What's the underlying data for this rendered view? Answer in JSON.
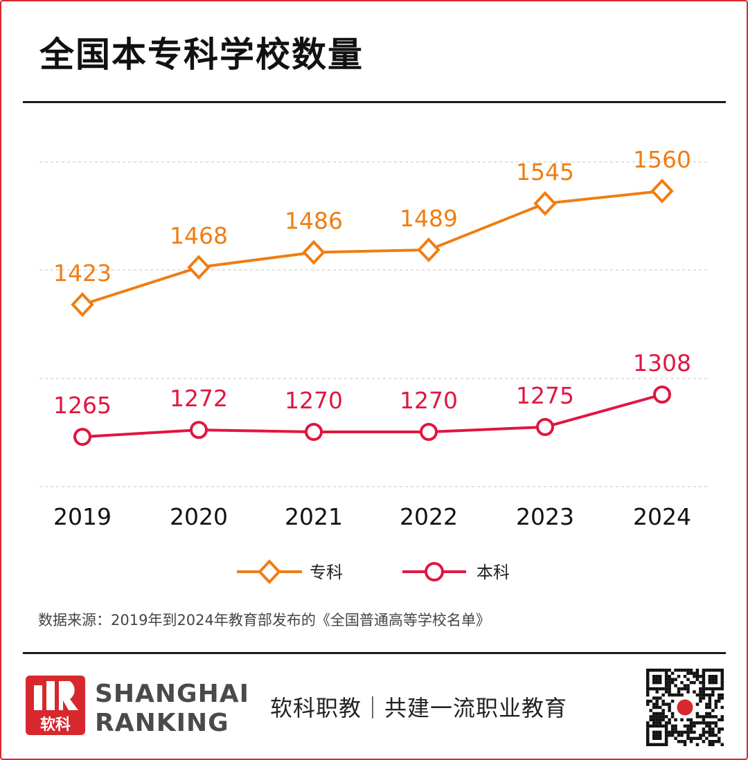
{
  "title": "全国本专科学校数量",
  "source_note": "数据来源：2019年到2024年教育部发布的《全国普通高等学校名单》",
  "footer": {
    "logo_text_cn": "软科",
    "brand_line1": "SHANGHAI",
    "brand_line2": "RANKING",
    "slogan": "软科职教｜共建一流职业教育"
  },
  "colors": {
    "zhuanke": "#f07d12",
    "benke": "#e0163f",
    "accent_red": "#d7282e"
  },
  "chart_data": {
    "type": "line",
    "categories": [
      "2019",
      "2020",
      "2021",
      "2022",
      "2023",
      "2024"
    ],
    "series": [
      {
        "name": "专科",
        "marker": "diamond",
        "color": "#f07d12",
        "values": [
          1423,
          1468,
          1486,
          1489,
          1545,
          1560
        ]
      },
      {
        "name": "本科",
        "marker": "circle",
        "color": "#e0163f",
        "values": [
          1265,
          1272,
          1270,
          1270,
          1275,
          1308
        ]
      }
    ],
    "title": "全国本专科学校数量",
    "xlabel": "",
    "ylabel": "",
    "grid": "dashed horizontal",
    "legend": "bottom-center"
  }
}
